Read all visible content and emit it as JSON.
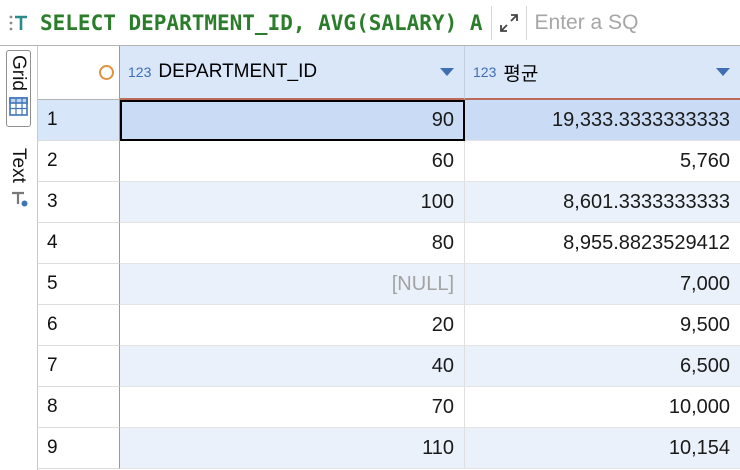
{
  "topbar": {
    "query_text": "SELECT DEPARTMENT_ID, AVG(SALARY) A",
    "placeholder": "Enter a SQ"
  },
  "sidebar": {
    "tabs": [
      {
        "label": "Grid",
        "active": true,
        "icon": "grid-icon"
      },
      {
        "label": "Text",
        "active": false,
        "icon": "text-icon"
      }
    ]
  },
  "grid": {
    "corner_icon": "record-circle-icon",
    "columns": [
      {
        "type_badge": "123",
        "name": "DEPARTMENT_ID"
      },
      {
        "type_badge": "123",
        "name": "평균"
      }
    ],
    "rows": [
      {
        "num": "1",
        "cells": [
          "90",
          "19,333.3333333333"
        ],
        "selected": true,
        "focused_col": 0
      },
      {
        "num": "2",
        "cells": [
          "60",
          "5,760"
        ]
      },
      {
        "num": "3",
        "cells": [
          "100",
          "8,601.3333333333"
        ]
      },
      {
        "num": "4",
        "cells": [
          "80",
          "8,955.8823529412"
        ]
      },
      {
        "num": "5",
        "cells": [
          "[NULL]",
          "7,000"
        ]
      },
      {
        "num": "6",
        "cells": [
          "20",
          "9,500"
        ]
      },
      {
        "num": "7",
        "cells": [
          "40",
          "6,500"
        ]
      },
      {
        "num": "8",
        "cells": [
          "70",
          "10,000"
        ]
      },
      {
        "num": "9",
        "cells": [
          "110",
          "10,154"
        ]
      }
    ]
  },
  "colors": {
    "query_green": "#2b7d2b",
    "header_bg": "#d9e7f8",
    "header_underline": "#bb6a59",
    "selection_blue": "#cadcf5",
    "stripe_blue": "#eaf1fb",
    "badge_blue": "#3f6eb4",
    "null_gray": "#a3a3a3",
    "ring_orange": "#e0923f"
  }
}
